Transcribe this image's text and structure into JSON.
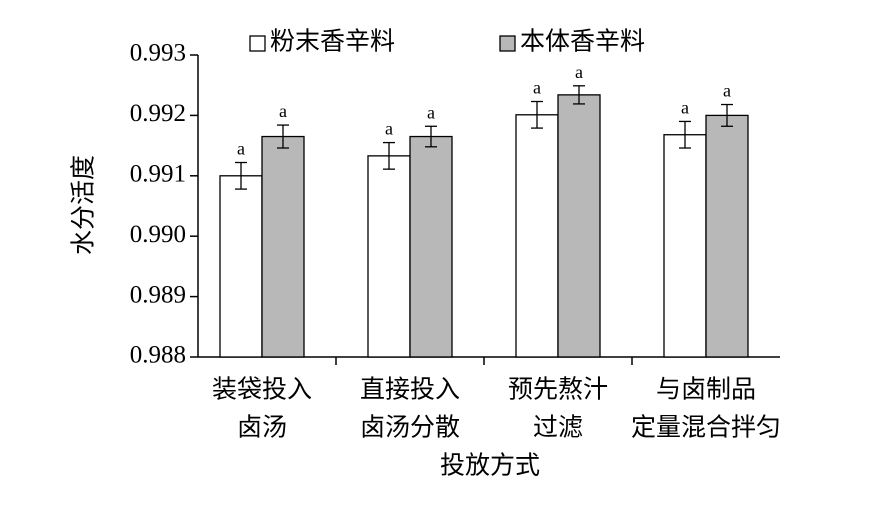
{
  "chart_data": {
    "type": "bar",
    "ylabel": "水分活度",
    "xlabel": "投放方式",
    "categories": [
      [
        "装袋投入",
        "卤汤"
      ],
      [
        "直接投入",
        "卤汤分散"
      ],
      [
        "预先熬汁",
        "过滤"
      ],
      [
        "与卤制品",
        "定量混合拌匀"
      ]
    ],
    "series": [
      {
        "name": "粉末香辛料",
        "color": "#ffffff",
        "values": [
          0.991,
          0.99133,
          0.99201,
          0.99168
        ],
        "errors": [
          0.00022,
          0.00022,
          0.00022,
          0.00022
        ],
        "labels": [
          "a",
          "a",
          "a",
          "a"
        ]
      },
      {
        "name": "本体香辛料",
        "color": "#b8b8b8",
        "values": [
          0.99165,
          0.99165,
          0.99234,
          0.992
        ],
        "errors": [
          0.00019,
          0.00017,
          0.00015,
          0.00018
        ],
        "labels": [
          "a",
          "a",
          "a",
          "a"
        ]
      }
    ],
    "ylim": [
      0.988,
      0.993
    ],
    "yticks": [
      0.988,
      0.989,
      {
        "value": 0.99,
        "label": "0.990"
      },
      0.991,
      0.992,
      0.993
    ],
    "legend": "top"
  }
}
